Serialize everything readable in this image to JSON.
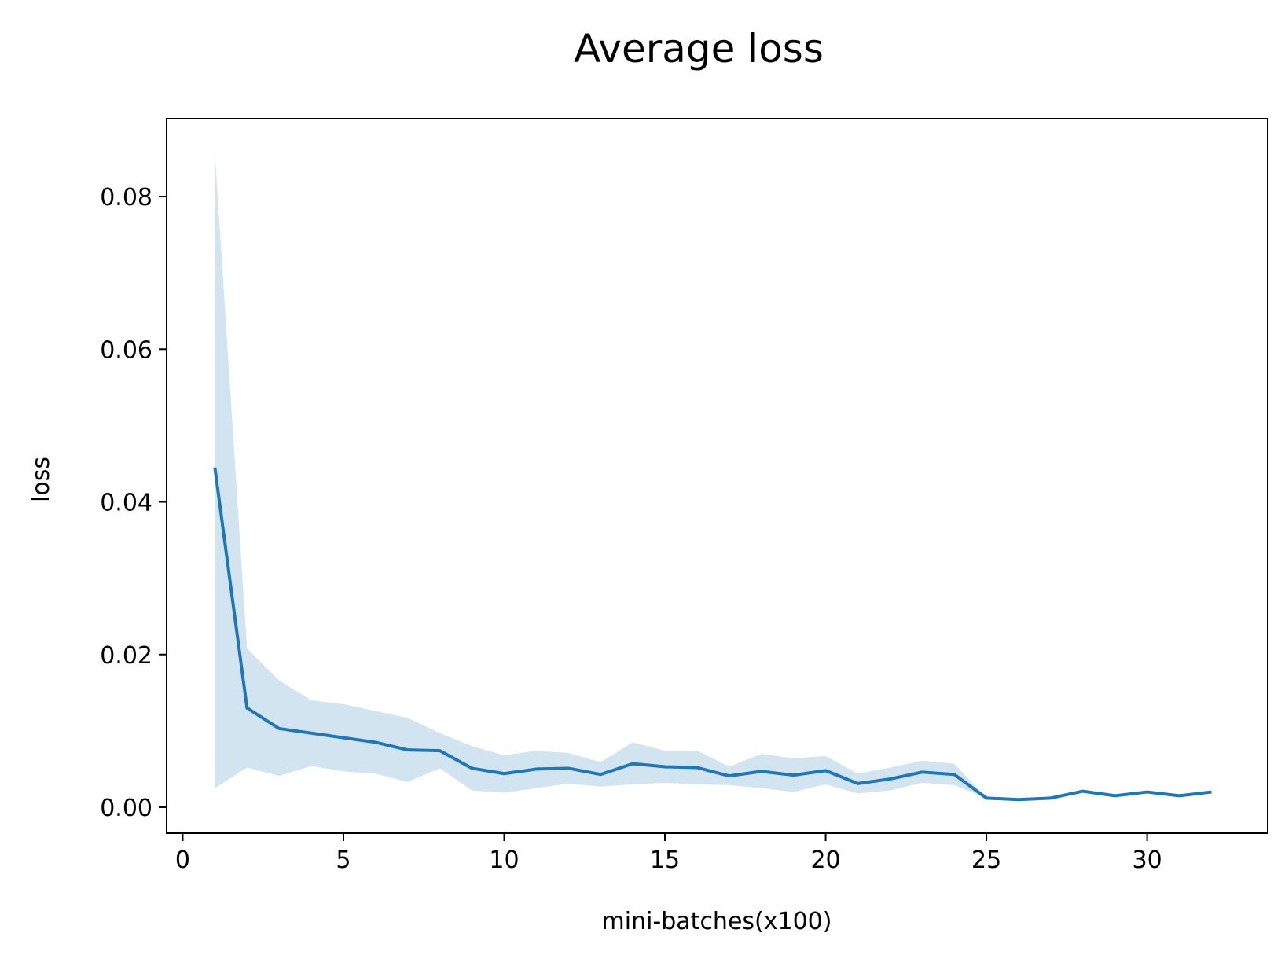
{
  "chart_data": {
    "type": "line",
    "title": "Average loss",
    "xlabel": "mini-batches(x100)",
    "ylabel": "loss",
    "xlim": [
      -0.5,
      33.75
    ],
    "ylim": [
      -0.0034,
      0.0902
    ],
    "xticks": [
      0,
      5,
      10,
      15,
      20,
      25,
      30
    ],
    "xtick_labels": [
      "0",
      "5",
      "10",
      "15",
      "20",
      "25",
      "30"
    ],
    "yticks": [
      0.0,
      0.02,
      0.04,
      0.06,
      0.08
    ],
    "ytick_labels": [
      "0.00",
      "0.02",
      "0.04",
      "0.06",
      "0.08"
    ],
    "grid": false,
    "legend": false,
    "colors": {
      "line": "#1f77b4",
      "band": "#1f77b4",
      "band_opacity": 0.2
    },
    "series": [
      {
        "x": [
          1,
          2,
          3,
          4,
          5,
          6,
          7,
          8,
          9,
          10,
          11,
          12,
          13,
          14,
          15,
          16,
          17,
          18,
          19,
          20,
          21,
          22,
          23,
          24,
          25,
          26,
          27,
          28,
          29,
          30,
          31,
          32
        ],
        "values": [
          0.0445,
          0.013,
          0.0103,
          0.0097,
          0.0091,
          0.0085,
          0.0075,
          0.0074,
          0.0051,
          0.0044,
          0.005,
          0.0051,
          0.0043,
          0.0057,
          0.0053,
          0.0052,
          0.0041,
          0.0047,
          0.0042,
          0.0048,
          0.0031,
          0.0037,
          0.0046,
          0.0043,
          0.0012,
          0.001,
          0.0012,
          0.0021,
          0.0015,
          0.002,
          0.0015,
          0.002
        ],
        "lower": [
          0.0025,
          0.0052,
          0.0041,
          0.0054,
          0.0047,
          0.0044,
          0.0033,
          0.0051,
          0.0022,
          0.0019,
          0.0025,
          0.0031,
          0.0027,
          0.003,
          0.0032,
          0.003,
          0.0029,
          0.0025,
          0.002,
          0.003,
          0.0018,
          0.0022,
          0.0032,
          0.0029,
          0.0012,
          0.001,
          0.0012,
          0.0021,
          0.0015,
          0.002,
          0.0015,
          0.002
        ],
        "upper": [
          0.0858,
          0.0208,
          0.0166,
          0.014,
          0.0135,
          0.0126,
          0.0117,
          0.0097,
          0.008,
          0.0068,
          0.0074,
          0.0071,
          0.0059,
          0.0085,
          0.0074,
          0.0074,
          0.0053,
          0.007,
          0.0064,
          0.0067,
          0.0044,
          0.0052,
          0.0061,
          0.0057,
          0.0012,
          0.001,
          0.0012,
          0.0021,
          0.0015,
          0.002,
          0.0015,
          0.002
        ]
      }
    ]
  }
}
